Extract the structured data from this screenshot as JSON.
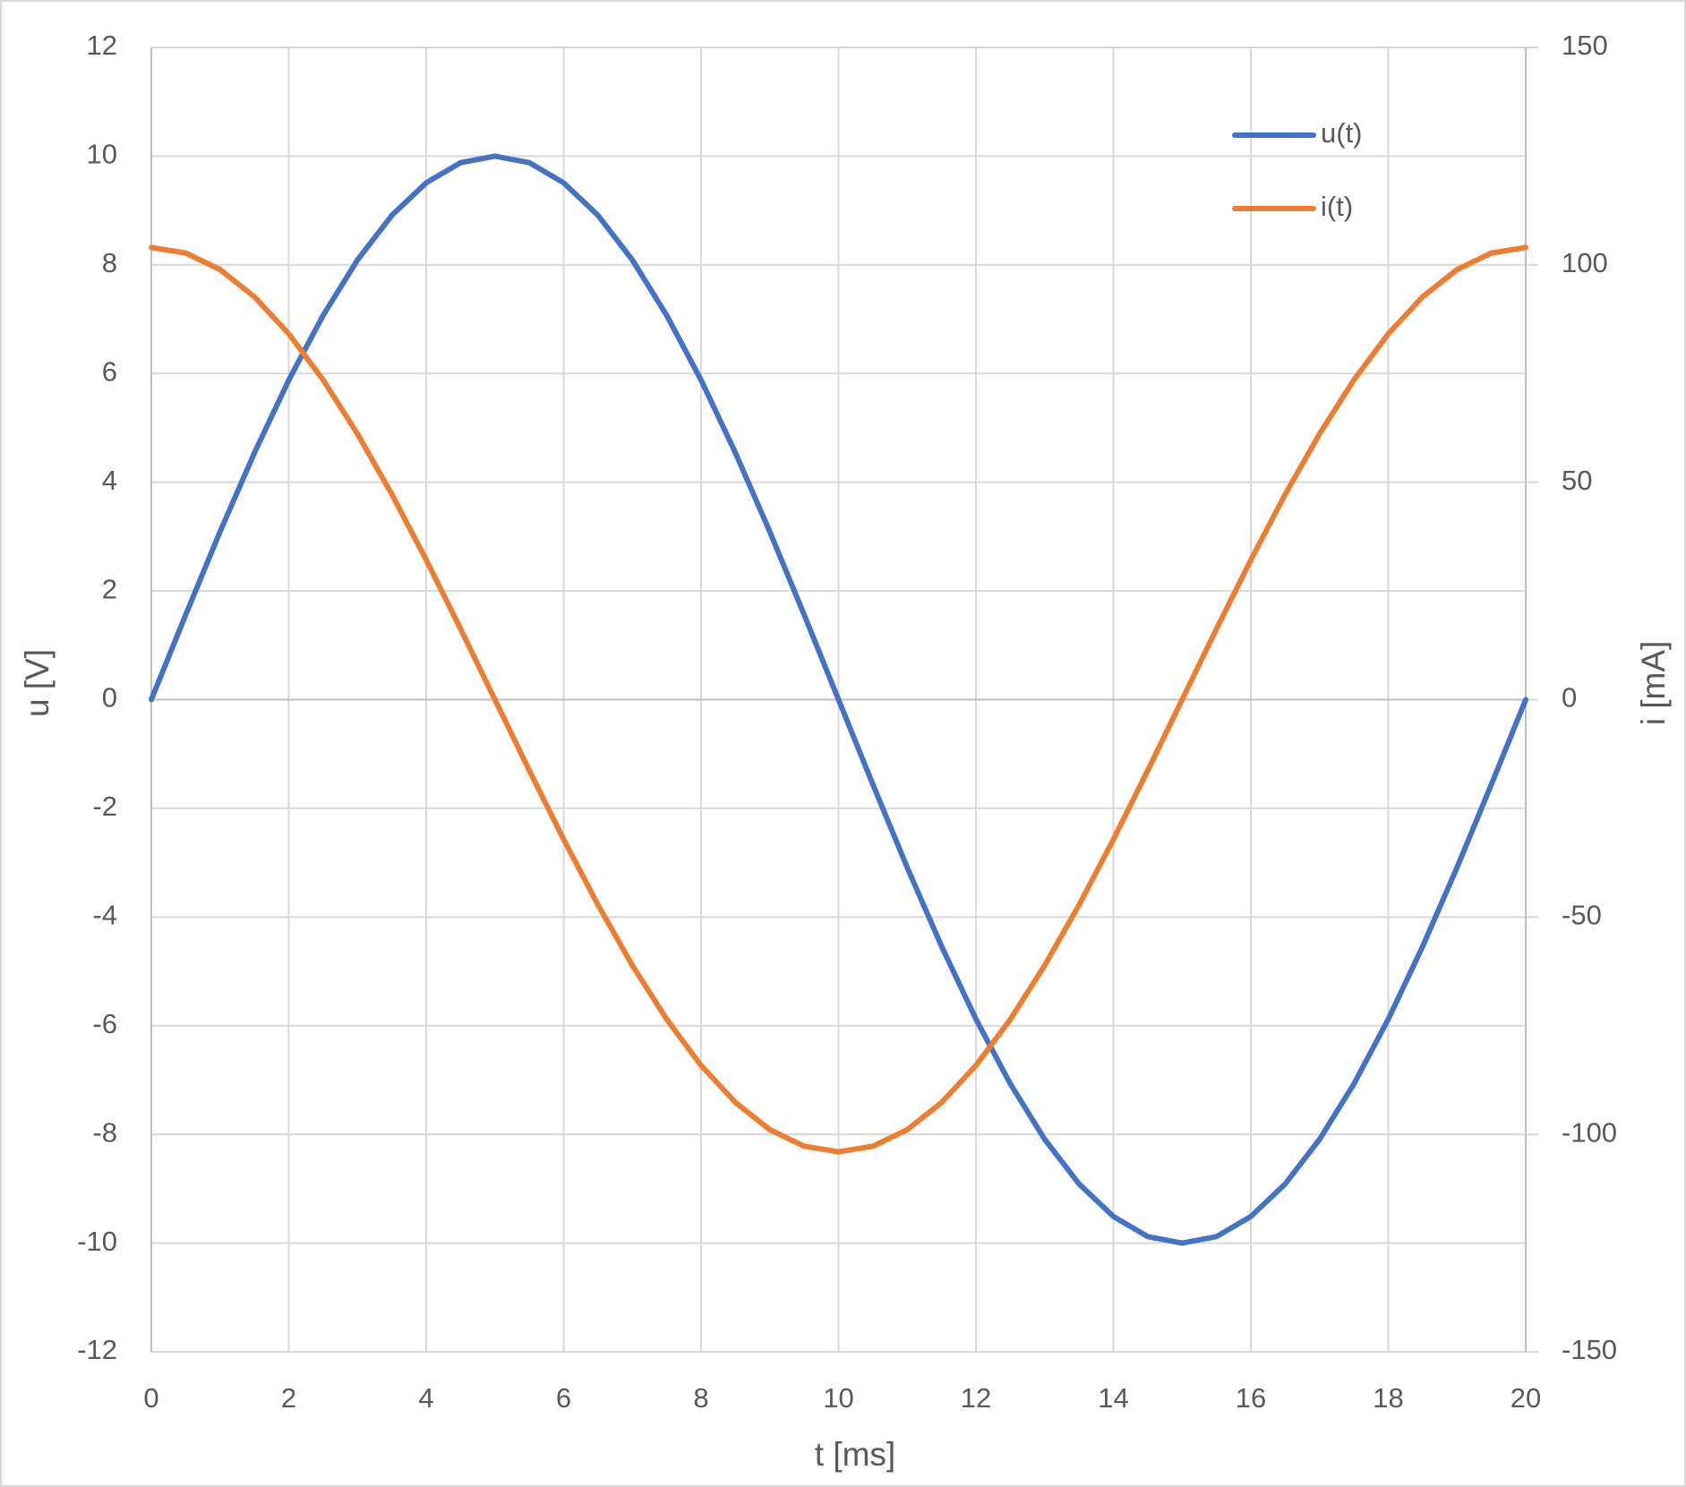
{
  "chart_data": {
    "type": "line",
    "x": [
      0,
      0.5,
      1,
      1.5,
      2,
      2.5,
      3,
      3.5,
      4,
      4.5,
      5,
      5.5,
      6,
      6.5,
      7,
      7.5,
      8,
      8.5,
      9,
      9.5,
      10,
      10.5,
      11,
      11.5,
      12,
      12.5,
      13,
      13.5,
      14,
      14.5,
      15,
      15.5,
      16,
      16.5,
      17,
      17.5,
      18,
      18.5,
      19,
      19.5,
      20
    ],
    "series": [
      {
        "name": "u(t)",
        "color": "#4472c4",
        "values": [
          0,
          1.56,
          3.09,
          4.54,
          5.88,
          7.07,
          8.09,
          8.91,
          9.51,
          9.88,
          10,
          9.88,
          9.51,
          8.91,
          8.09,
          7.07,
          5.88,
          4.54,
          3.09,
          1.56,
          0,
          -1.56,
          -3.09,
          -4.54,
          -5.88,
          -7.07,
          -8.09,
          -8.91,
          -9.51,
          -9.88,
          -10,
          -9.88,
          -9.51,
          -8.91,
          -8.09,
          -7.07,
          -5.88,
          -4.54,
          -3.09,
          -1.56,
          0
        ]
      },
      {
        "name": "i(t)",
        "color": "#ed7d31",
        "axis": "y2",
        "values": [
          104,
          102.72,
          98.91,
          92.66,
          84.14,
          73.54,
          61.13,
          47.22,
          32.14,
          16.27,
          0,
          -16.27,
          -32.14,
          -47.22,
          -61.13,
          -73.54,
          -84.14,
          -92.66,
          -98.91,
          -102.72,
          -104,
          -102.72,
          -98.91,
          -92.66,
          -84.14,
          -73.54,
          -61.13,
          -47.22,
          -32.14,
          -16.27,
          0,
          16.27,
          32.14,
          47.22,
          61.13,
          73.54,
          84.14,
          92.66,
          98.91,
          102.72,
          104
        ]
      }
    ],
    "x_label": "t [ms]",
    "y_label": "u [V]",
    "y2_label": "i [mA]",
    "xlim": [
      0,
      20
    ],
    "xticks": [
      0,
      2,
      4,
      6,
      8,
      10,
      12,
      14,
      16,
      18,
      20
    ],
    "ylim": [
      -12,
      12
    ],
    "yticks": [
      -12,
      -10,
      -8,
      -6,
      -4,
      -2,
      0,
      2,
      4,
      6,
      8,
      10,
      12
    ],
    "y2lim": [
      -150,
      150
    ],
    "y2ticks": [
      -150,
      -100,
      -50,
      0,
      50,
      100,
      150
    ],
    "grid": true,
    "legend": "top-right"
  }
}
